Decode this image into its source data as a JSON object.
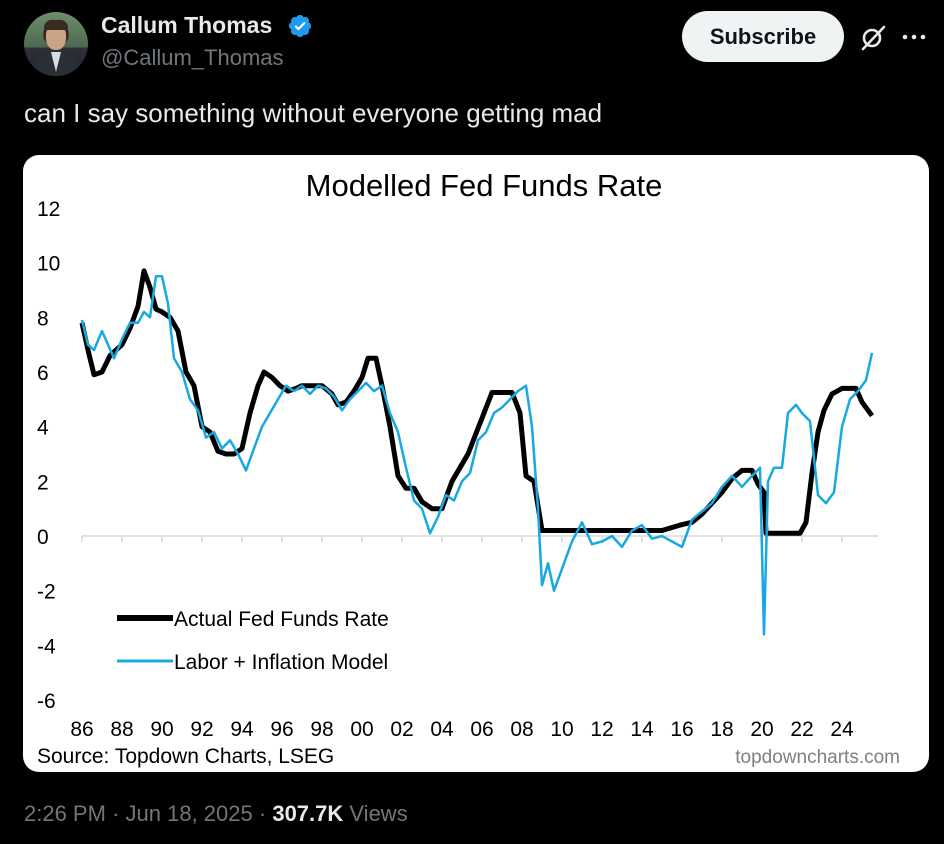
{
  "author": {
    "name": "Callum Thomas",
    "handle": "@Callum_Thomas",
    "verified": true
  },
  "actions": {
    "subscribe_label": "Subscribe"
  },
  "icons": {
    "verified": "verified-badge-icon",
    "grok": "grok-icon",
    "more": "more-icon"
  },
  "tweet": {
    "text": "can I say something without everyone getting mad"
  },
  "meta": {
    "time": "2:26 PM",
    "sep1": "·",
    "date": "Jun 18, 2025",
    "sep2": "·",
    "views_count": "307.7K",
    "views_label": "Views"
  },
  "colors": {
    "actual": "#000000",
    "model": "#19a8e0",
    "verified": "#1d9bf0"
  },
  "chart_data": {
    "type": "line",
    "title": "Modelled Fed Funds Rate",
    "source": "Source: Topdown Charts, LSEG",
    "watermark": "topdowncharts.com",
    "ylim": [
      -6,
      12
    ],
    "xlim": [
      1986,
      2025.8
    ],
    "y_ticks": [
      "12",
      "10",
      "8",
      "6",
      "4",
      "2",
      "0",
      "-2",
      "-4",
      "-6"
    ],
    "y_tick_values": [
      12,
      10,
      8,
      6,
      4,
      2,
      0,
      -2,
      -4,
      -6
    ],
    "x_ticks": [
      "86",
      "88",
      "90",
      "92",
      "94",
      "96",
      "98",
      "00",
      "02",
      "04",
      "06",
      "08",
      "10",
      "12",
      "14",
      "16",
      "18",
      "20",
      "22",
      "24"
    ],
    "x_tick_values": [
      1986,
      1988,
      1990,
      1992,
      1994,
      1996,
      1998,
      2000,
      2002,
      2004,
      2006,
      2008,
      2010,
      2012,
      2014,
      2016,
      2018,
      2020,
      2022,
      2024
    ],
    "legend_position": "bottom-left",
    "series": [
      {
        "name": "Actual Fed Funds Rate",
        "x": [
          1986,
          1986.3,
          1986.6,
          1987,
          1987.4,
          1987.7,
          1988,
          1988.4,
          1988.8,
          1989.1,
          1989.4,
          1989.7,
          1990,
          1990.4,
          1990.8,
          1991.2,
          1991.6,
          1992,
          1992.4,
          1992.8,
          1993.2,
          1993.6,
          1994,
          1994.4,
          1994.8,
          1995.1,
          1995.5,
          1995.9,
          1996.3,
          1996.7,
          1997,
          1997.5,
          1998,
          1998.5,
          1998.8,
          1999.2,
          1999.6,
          2000,
          2000.3,
          2000.7,
          2001,
          2001.4,
          2001.8,
          2002.2,
          2002.6,
          2003,
          2003.5,
          2004,
          2004.5,
          2004.9,
          2005.3,
          2005.7,
          2006.1,
          2006.5,
          2007,
          2007.5,
          2007.9,
          2008.2,
          2008.6,
          2009,
          2010,
          2011,
          2012,
          2013,
          2014,
          2015,
          2015.9,
          2016.5,
          2017,
          2017.5,
          2018,
          2018.5,
          2019,
          2019.5,
          2019.8,
          2020.1,
          2020.2,
          2021,
          2021.9,
          2022.2,
          2022.5,
          2022.8,
          2023.1,
          2023.5,
          2024,
          2024.5,
          2024.7,
          2025,
          2025.5
        ],
        "y": [
          7.8,
          6.8,
          5.9,
          6.0,
          6.6,
          6.8,
          7.0,
          7.6,
          8.4,
          9.7,
          9.1,
          8.3,
          8.2,
          8.0,
          7.5,
          6.0,
          5.5,
          4.0,
          3.8,
          3.1,
          3.0,
          3.0,
          3.2,
          4.5,
          5.5,
          6.0,
          5.8,
          5.5,
          5.3,
          5.4,
          5.5,
          5.5,
          5.5,
          5.2,
          4.8,
          4.9,
          5.3,
          5.8,
          6.5,
          6.5,
          5.5,
          4.0,
          2.2,
          1.75,
          1.75,
          1.25,
          1.0,
          1.0,
          2.0,
          2.5,
          3.0,
          3.75,
          4.5,
          5.25,
          5.25,
          5.25,
          4.5,
          2.2,
          2.0,
          0.2,
          0.2,
          0.2,
          0.2,
          0.2,
          0.2,
          0.2,
          0.4,
          0.5,
          0.8,
          1.2,
          1.6,
          2.1,
          2.4,
          2.4,
          1.9,
          1.6,
          0.1,
          0.1,
          0.1,
          0.5,
          2.3,
          3.8,
          4.6,
          5.2,
          5.4,
          5.4,
          5.4,
          4.9,
          4.4
        ]
      },
      {
        "name": "Labor + Inflation Model",
        "x": [
          1986,
          1986.3,
          1986.6,
          1987,
          1987.3,
          1987.6,
          1988,
          1988.4,
          1988.8,
          1989.1,
          1989.4,
          1989.7,
          1990,
          1990.3,
          1990.6,
          1991,
          1991.4,
          1991.8,
          1992.2,
          1992.6,
          1993,
          1993.4,
          1993.8,
          1994.2,
          1994.6,
          1995,
          1995.4,
          1995.8,
          1996.2,
          1996.6,
          1997,
          1997.4,
          1997.8,
          1998.2,
          1998.6,
          1999,
          1999.4,
          1999.8,
          2000.2,
          2000.6,
          2001,
          2001.4,
          2001.8,
          2002.2,
          2002.6,
          2003,
          2003.4,
          2003.8,
          2004.2,
          2004.6,
          2005,
          2005.4,
          2005.8,
          2006.2,
          2006.6,
          2007,
          2007.4,
          2007.8,
          2008.2,
          2008.5,
          2008.8,
          2009,
          2009.3,
          2009.6,
          2010,
          2010.5,
          2011,
          2011.5,
          2012,
          2012.5,
          2013,
          2013.5,
          2014,
          2014.5,
          2015,
          2015.5,
          2016,
          2016.5,
          2017,
          2017.5,
          2018,
          2018.5,
          2019,
          2019.5,
          2019.9,
          2020.1,
          2020.3,
          2020.6,
          2021,
          2021.3,
          2021.7,
          2022,
          2022.4,
          2022.8,
          2023.2,
          2023.6,
          2024,
          2024.4,
          2024.8,
          2025.2,
          2025.5
        ],
        "y": [
          7.9,
          7.0,
          6.8,
          7.5,
          7.0,
          6.5,
          7.2,
          7.8,
          7.8,
          8.2,
          8.0,
          9.5,
          9.5,
          8.5,
          6.5,
          6.0,
          5.0,
          4.6,
          3.6,
          3.8,
          3.2,
          3.5,
          3.0,
          2.4,
          3.2,
          4.0,
          4.5,
          5.0,
          5.5,
          5.3,
          5.5,
          5.2,
          5.5,
          5.4,
          5.1,
          4.6,
          5.0,
          5.3,
          5.6,
          5.3,
          5.5,
          4.5,
          3.8,
          2.5,
          1.3,
          1.0,
          0.1,
          0.7,
          1.5,
          1.3,
          2.0,
          2.3,
          3.5,
          3.8,
          4.5,
          4.7,
          5.0,
          5.3,
          5.5,
          4.0,
          1.0,
          -1.8,
          -1.0,
          -2.0,
          -1.2,
          -0.2,
          0.5,
          -0.3,
          -0.2,
          0.0,
          -0.4,
          0.2,
          0.4,
          -0.1,
          0.0,
          -0.2,
          -0.4,
          0.6,
          0.9,
          1.2,
          1.8,
          2.2,
          1.8,
          2.2,
          2.5,
          -3.6,
          2.0,
          2.5,
          2.5,
          4.5,
          4.8,
          4.5,
          4.2,
          1.5,
          1.2,
          1.6,
          4.0,
          5.0,
          5.3,
          5.7,
          6.7
        ]
      }
    ]
  }
}
